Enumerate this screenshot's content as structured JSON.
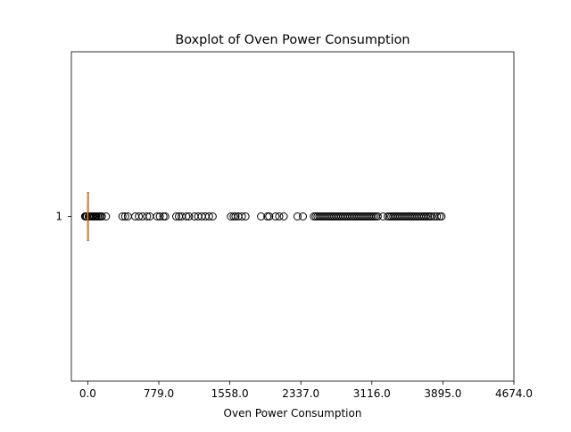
{
  "chart_data": {
    "type": "boxplot",
    "title": "Boxplot of Oven Power Consumption",
    "xlabel": "Oven Power Consumption",
    "ylabel": "",
    "orientation": "horizontal",
    "xlim": [
      -180,
      4674
    ],
    "xticks": [
      0,
      779,
      1558,
      2337,
      3116,
      3895,
      4674
    ],
    "xtick_labels": [
      "0.0",
      "779.0",
      "1558.0",
      "2337.0",
      "3116.0",
      "3895.0",
      "4674.0"
    ],
    "yticks": [
      1
    ],
    "ytick_labels": [
      "1"
    ],
    "boxes": [
      {
        "position": 1,
        "whisker_low": 0,
        "q1": 0,
        "median": 0,
        "q3": 0,
        "whisker_high": 0,
        "outliers": [
          -30,
          -20,
          -10,
          10,
          20,
          30,
          45,
          55,
          70,
          85,
          95,
          110,
          125,
          140,
          155,
          200,
          380,
          410,
          440,
          520,
          560,
          600,
          650,
          680,
          760,
          790,
          830,
          850,
          970,
          1000,
          1030,
          1080,
          1110,
          1170,
          1210,
          1250,
          1290,
          1330,
          1370,
          1570,
          1600,
          1620,
          1650,
          1690,
          1730,
          1900,
          1970,
          1990,
          2060,
          2100,
          2150,
          2300,
          2360,
          2480,
          2500,
          2520,
          2540,
          2560,
          2580,
          2600,
          2620,
          2640,
          2660,
          2680,
          2700,
          2720,
          2740,
          2760,
          2780,
          2800,
          2820,
          2840,
          2860,
          2880,
          2900,
          2920,
          2940,
          2960,
          2980,
          3000,
          3020,
          3040,
          3060,
          3080,
          3100,
          3120,
          3140,
          3160,
          3180,
          3240,
          3290,
          3310,
          3330,
          3350,
          3370,
          3390,
          3410,
          3430,
          3450,
          3470,
          3490,
          3510,
          3530,
          3550,
          3570,
          3590,
          3610,
          3630,
          3650,
          3670,
          3690,
          3710,
          3730,
          3750,
          3770,
          3800,
          3830,
          3860,
          3880
        ]
      }
    ],
    "colors": {
      "median": "#ff7f0e",
      "box": "#000000",
      "outlier_edge": "#000000",
      "axes": "#000000"
    }
  }
}
